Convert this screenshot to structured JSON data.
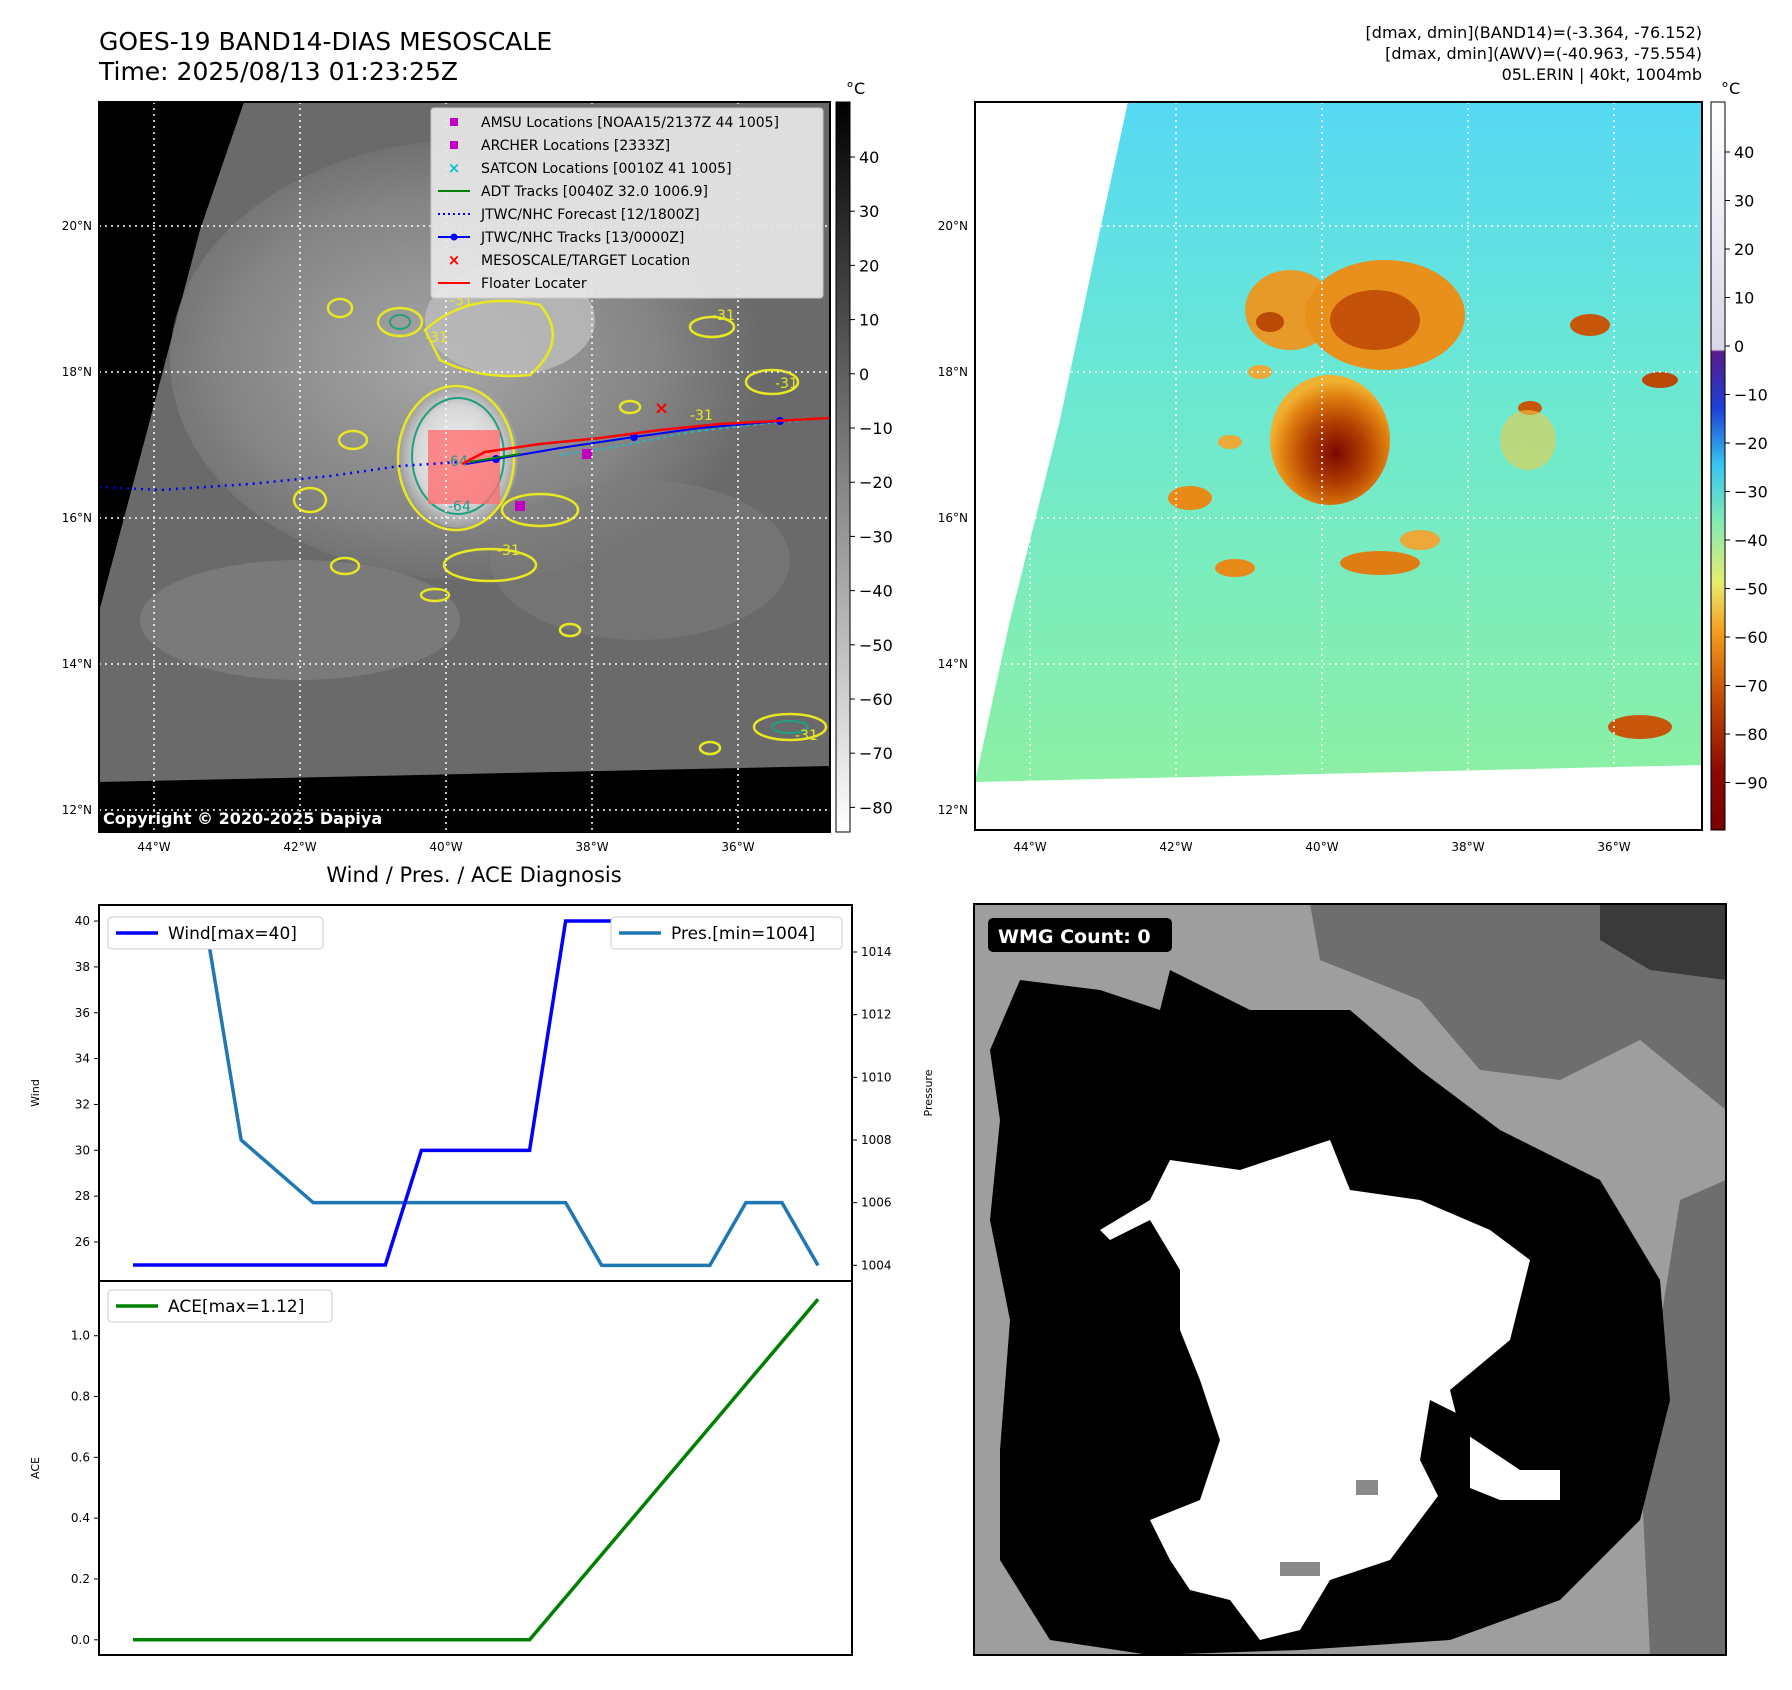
{
  "header": {
    "title_line1": "GOES-19 BAND14-DIAS MESOSCALE",
    "title_line2": "Time: 2025/08/13 01:23:25Z",
    "stats_line1": "[dmax, dmin](BAND14)=(-3.364, -76.152)",
    "stats_line2": "[dmax, dmin](AWV)=(-40.963, -75.554)",
    "stats_line3": "05L.ERIN | 40kt, 1004mb"
  },
  "map_axes": {
    "lat_labels": [
      "20°N",
      "18°N",
      "16°N",
      "14°N",
      "12°N"
    ],
    "lon_labels": [
      "44°W",
      "42°W",
      "40°W",
      "38°W",
      "36°W"
    ]
  },
  "left_map": {
    "copyright": "Copyright © 2020-2025 Dapiya",
    "contour_labels": [
      "-31",
      "-31",
      "-31",
      "-31",
      "-31",
      "-64",
      "-64",
      "-31",
      "-31"
    ],
    "legend": [
      {
        "label": "AMSU Locations [NOAA15/2137Z 44 1005]",
        "symbol": "square",
        "color": "#c000c0"
      },
      {
        "label": "ARCHER Locations [2333Z]",
        "symbol": "square",
        "color": "#c000c0"
      },
      {
        "label": "SATCON Locations [0010Z 41 1005]",
        "symbol": "x",
        "color": "#17becf"
      },
      {
        "label": "ADT Tracks [0040Z 32.0 1006.9]",
        "symbol": "line",
        "color": "#008000"
      },
      {
        "label": "JTWC/NHC Forecast [12/1800Z]",
        "symbol": "dotted",
        "color": "#0000ff"
      },
      {
        "label": "JTWC/NHC Tracks [13/0000Z]",
        "symbol": "line-dot",
        "color": "#0000ff"
      },
      {
        "label": "MESOSCALE/TARGET Location",
        "symbol": "x",
        "color": "#ff0000"
      },
      {
        "label": "Floater Locater",
        "symbol": "line",
        "color": "#ff0000"
      }
    ],
    "colorbar": {
      "unit": "°C",
      "ticks": [
        "40",
        "30",
        "20",
        "10",
        "0",
        "−10",
        "−20",
        "−30",
        "−40",
        "−50",
        "−60",
        "−70",
        "−80"
      ]
    }
  },
  "right_map": {
    "colorbar": {
      "unit": "°C",
      "ticks": [
        "40",
        "30",
        "20",
        "10",
        "0",
        "−10",
        "−20",
        "−30",
        "−40",
        "−50",
        "−60",
        "−70",
        "−80",
        "−90"
      ]
    }
  },
  "wmg_panel": {
    "label": "WMG Count: 0"
  },
  "colors": {
    "wind": "#0000ff",
    "pressure": "#1f77b4",
    "ace": "#008000",
    "contour_yellow": "#e8e820",
    "contour_teal": "#20a080"
  },
  "chart_data": [
    {
      "type": "line",
      "title": "Wind / Pres. / ACE Diagnosis",
      "x": [
        0,
        1,
        2,
        3,
        4,
        5,
        6,
        7,
        8,
        9,
        10,
        11,
        12,
        13,
        14,
        15,
        16,
        17,
        18,
        19
      ],
      "series": [
        {
          "name": "Wind[max=40]",
          "axis": "left",
          "ylabel": "Wind",
          "ylim": [
            24.3,
            40.7
          ],
          "yticks": [
            "26",
            "28",
            "30",
            "32",
            "34",
            "36",
            "38",
            "40"
          ],
          "values": [
            25,
            25,
            25,
            25,
            25,
            25,
            25,
            25,
            30,
            30,
            30,
            30,
            40,
            40,
            40,
            40,
            40,
            40,
            40,
            40
          ]
        },
        {
          "name": "Pres.[min=1004]",
          "axis": "right",
          "ylabel": "Pressure",
          "ylim": [
            1003.5,
            1015.5
          ],
          "yticks": [
            "1004",
            "1006",
            "1008",
            "1010",
            "1012",
            "1014"
          ],
          "values": [
            1015,
            1015,
            1015,
            1008,
            1007,
            1006,
            1006,
            1006,
            1006,
            1006,
            1006,
            1006,
            1006,
            1004,
            1004,
            1004,
            1004,
            1006,
            1006,
            1004
          ]
        }
      ]
    },
    {
      "type": "line",
      "title": "",
      "ylabel": "ACE",
      "ylim": [
        -0.05,
        1.18
      ],
      "yticks": [
        "0.0",
        "0.2",
        "0.4",
        "0.6",
        "0.8",
        "1.0"
      ],
      "x": [
        0,
        1,
        2,
        3,
        4,
        5,
        6,
        7,
        8,
        9,
        10,
        11,
        12,
        13,
        14,
        15,
        16,
        17,
        18,
        19
      ],
      "series": [
        {
          "name": "ACE[max=1.12]",
          "values": [
            0,
            0,
            0,
            0,
            0,
            0,
            0,
            0,
            0,
            0,
            0,
            0,
            0.14,
            0.28,
            0.42,
            0.56,
            0.7,
            0.84,
            0.98,
            1.12
          ]
        }
      ]
    }
  ]
}
